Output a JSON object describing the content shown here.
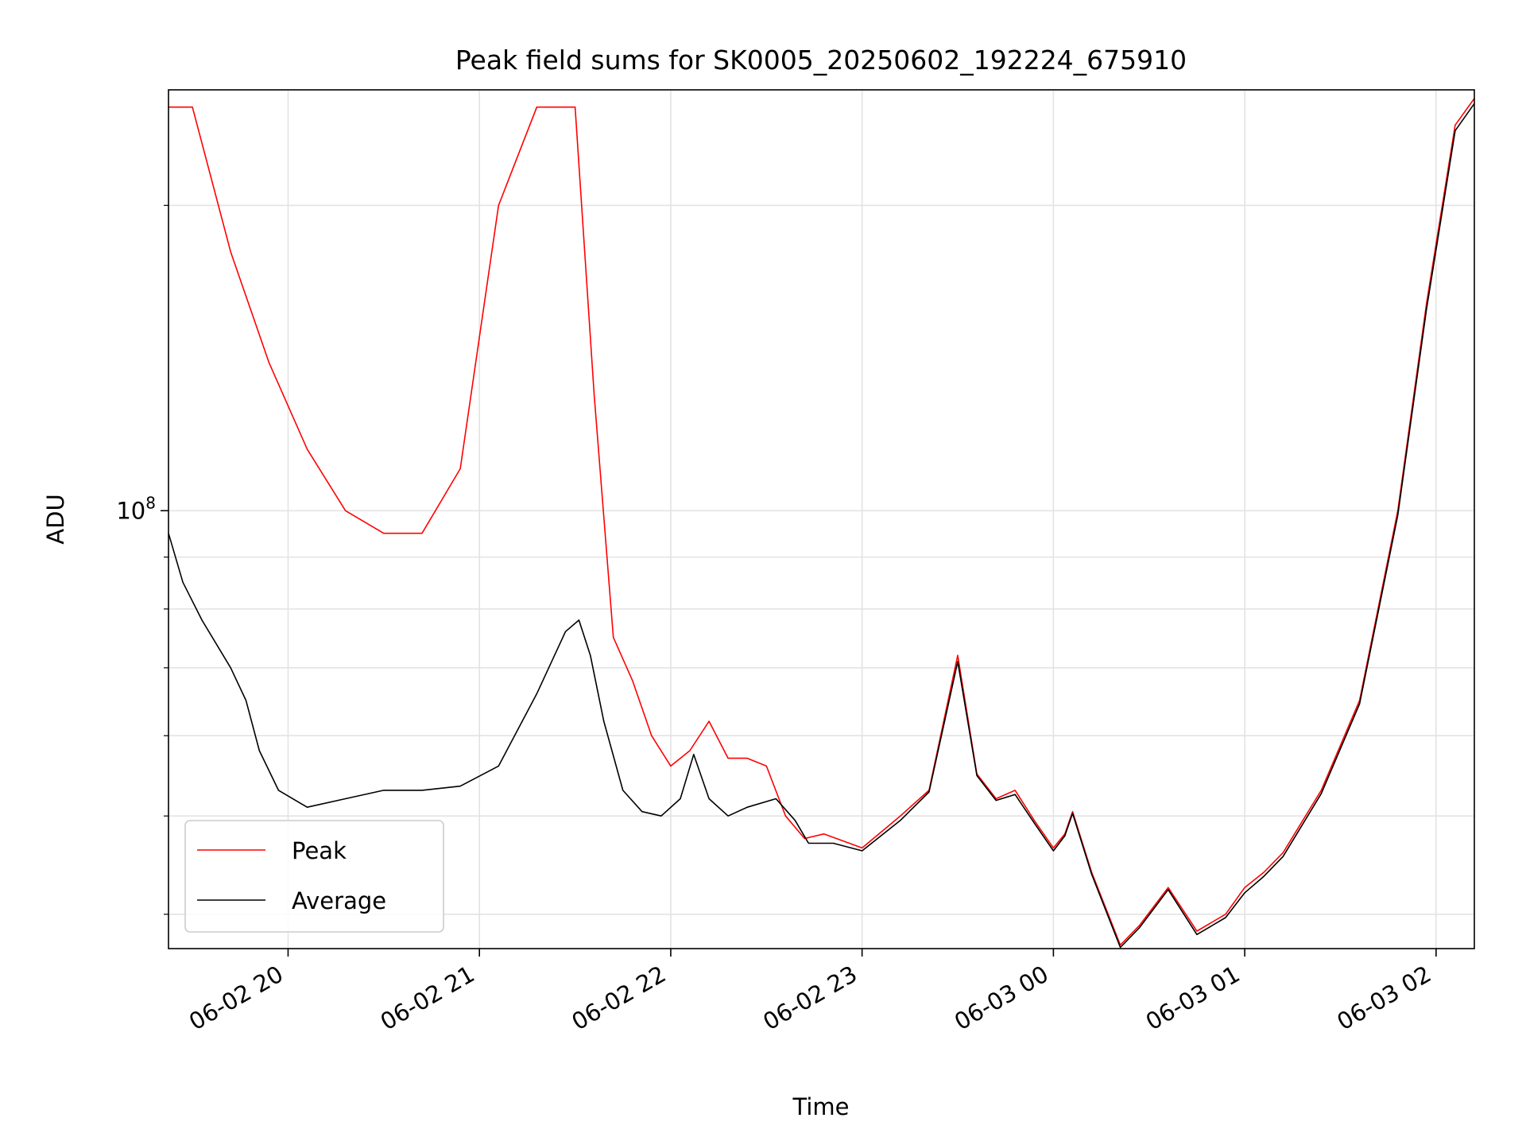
{
  "chart_data": {
    "type": "line",
    "title": "Peak field sums for SK0005_20250602_192224_675910",
    "xlabel": "Time",
    "ylabel": "ADU",
    "y_scale": "log",
    "grid": true,
    "legend_position": "lower-left",
    "x_tick_labels": [
      "06-02 20",
      "06-02 21",
      "06-02 22",
      "06-02 23",
      "06-03 00",
      "06-03 01",
      "06-03 02"
    ],
    "x_tick_hours": [
      20,
      21,
      22,
      23,
      24,
      25,
      26
    ],
    "xlim_hours": [
      19.375,
      26.2
    ],
    "ylim": [
      37000000,
      260000000
    ],
    "y_tick_label_base": "10",
    "y_tick_label_exp": "8",
    "y_major_tick": 100000000,
    "y_minor_ticks": [
      40000000,
      50000000,
      60000000,
      70000000,
      80000000,
      90000000,
      200000000
    ],
    "series": [
      {
        "name": "Peak",
        "color": "#ff0000",
        "hours": [
          19.375,
          19.5,
          19.7,
          19.9,
          20.1,
          20.3,
          20.5,
          20.7,
          20.9,
          21.1,
          21.3,
          21.5,
          21.6,
          21.7,
          21.8,
          21.9,
          22.0,
          22.1,
          22.2,
          22.3,
          22.4,
          22.5,
          22.6,
          22.7,
          22.8,
          23.0,
          23.2,
          23.35,
          23.5,
          23.6,
          23.7,
          23.8,
          23.9,
          24.0,
          24.06,
          24.1,
          24.2,
          24.35,
          24.45,
          24.6,
          24.75,
          24.9,
          25.0,
          25.1,
          25.2,
          25.4,
          25.6,
          25.8,
          25.95,
          26.1,
          26.2
        ],
        "values": [
          250000000,
          250000000,
          180000000,
          140000000,
          115000000,
          100000000,
          95000000,
          95000000,
          110000000,
          200000000,
          250000000,
          250000000,
          130000000,
          75000000,
          68000000,
          60000000,
          56000000,
          58000000,
          62000000,
          57000000,
          57000000,
          56000000,
          50000000,
          47500000,
          48000000,
          46500000,
          50000000,
          53000000,
          72000000,
          55000000,
          52000000,
          53000000,
          49500000,
          46500000,
          48000000,
          50500000,
          44000000,
          37300000,
          39000000,
          42500000,
          38500000,
          40000000,
          42500000,
          44000000,
          46000000,
          53000000,
          65000000,
          100000000,
          160000000,
          240000000,
          255000000
        ]
      },
      {
        "name": "Average",
        "color": "#000000",
        "hours": [
          19.375,
          19.45,
          19.55,
          19.7,
          19.78,
          19.85,
          19.95,
          20.1,
          20.3,
          20.5,
          20.7,
          20.9,
          21.1,
          21.3,
          21.45,
          21.52,
          21.58,
          21.65,
          21.75,
          21.85,
          21.95,
          22.05,
          22.12,
          22.2,
          22.3,
          22.4,
          22.55,
          22.65,
          22.72,
          22.85,
          23.0,
          23.2,
          23.35,
          23.5,
          23.6,
          23.7,
          23.8,
          23.9,
          24.0,
          24.06,
          24.1,
          24.2,
          24.35,
          24.45,
          24.6,
          24.75,
          24.9,
          25.0,
          25.1,
          25.2,
          25.4,
          25.6,
          25.8,
          25.95,
          26.1,
          26.2
        ],
        "values": [
          95000000,
          85000000,
          78000000,
          70000000,
          65000000,
          58000000,
          53000000,
          51000000,
          52000000,
          53000000,
          53000000,
          53500000,
          56000000,
          66000000,
          76000000,
          78000000,
          72000000,
          62000000,
          53000000,
          50500000,
          50000000,
          52000000,
          57500000,
          52000000,
          50000000,
          51000000,
          52000000,
          49500000,
          47000000,
          47000000,
          46200000,
          49500000,
          52800000,
          71000000,
          54800000,
          51800000,
          52500000,
          49200000,
          46200000,
          47800000,
          50300000,
          43800000,
          37100000,
          38800000,
          42300000,
          38200000,
          39700000,
          42000000,
          43600000,
          45600000,
          52600000,
          64500000,
          99000000,
          158000000,
          237000000,
          252000000
        ]
      }
    ]
  }
}
